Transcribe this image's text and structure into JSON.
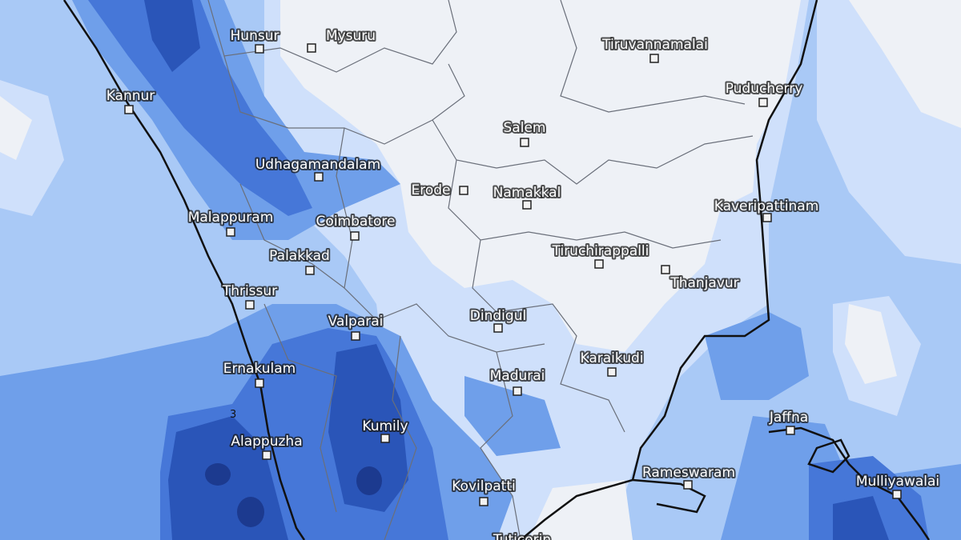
{
  "map": {
    "type": "precipitation overlay map",
    "colors": {
      "ocean_base": "#a9c9f6",
      "pale": "#cfe0fb",
      "none": "#eef1f6",
      "medium": "#6f9fea",
      "heavy": "#4677d8",
      "very_heavy": "#2a55b8",
      "extreme": "#1c3a8f",
      "coastline": "#111111",
      "borders": "#6a6f7a"
    },
    "contour_label": "3",
    "places": [
      "Hunsur",
      "Mysuru",
      "Tiruvannamalai",
      "Kannur",
      "Puducherry",
      "Salem",
      "Udhagamandalam",
      "Erode",
      "Namakkal",
      "Kaveripattinam",
      "Malappuram",
      "Coimbatore",
      "Palakkad",
      "Tiruchirappalli",
      "Thanjavur",
      "Thrissur",
      "Valparai",
      "Dindigul",
      "Ernakulam",
      "Karaikudi",
      "Madurai",
      "Jaffna",
      "Kumily",
      "Alappuzha",
      "Rameswaram",
      "Kovilpatti",
      "Mulliyawalai",
      "Tuticorin"
    ]
  }
}
